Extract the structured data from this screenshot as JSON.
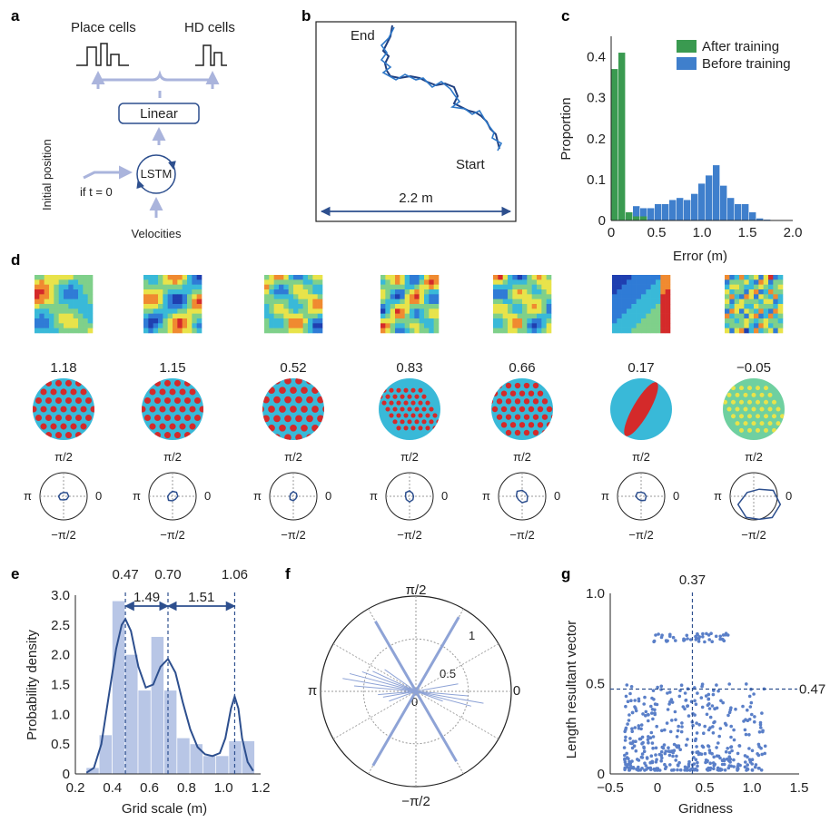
{
  "panel_labels": {
    "a": "a",
    "b": "b",
    "c": "c",
    "d": "d",
    "e": "e",
    "f": "f",
    "g": "g"
  },
  "panel_a": {
    "place_cells": "Place cells",
    "hd_cells": "HD cells",
    "linear": "Linear",
    "lstm": "LSTM",
    "initial_position": "Initial position",
    "if_t0": "if t = 0",
    "velocities": "Velocities"
  },
  "panel_b": {
    "end": "End",
    "start": "Start",
    "scale": "2.2 m"
  },
  "panel_d": {
    "gridness_scores": [
      "1.18",
      "1.15",
      "0.52",
      "0.83",
      "0.66",
      "0.17",
      "−0.05"
    ],
    "polar_top": "π/2",
    "polar_bottom": "−π/2",
    "polar_left": "π",
    "polar_right": "0",
    "polar_radius": [
      0.22,
      0.24,
      0.2,
      0.24,
      0.3,
      0.24,
      0.9
    ]
  },
  "panel_f": {
    "top": "π/2",
    "bottom": "−π/2",
    "left": "π",
    "right": "0",
    "r1": "1",
    "r05": "0.5",
    "r0": "0"
  },
  "chart_data": [
    {
      "panel": "c",
      "type": "bar",
      "xlabel": "Error (m)",
      "ylabel": "Proportion",
      "xlim": [
        0,
        2.0
      ],
      "ylim": [
        0,
        0.45
      ],
      "x_ticks": [
        "0",
        "0.5",
        "1.0",
        "1.5",
        "2.0"
      ],
      "y_ticks": [
        "0",
        "0.1",
        "0.2",
        "0.3",
        "0.4"
      ],
      "bin_width": 0.08,
      "bin_starts": [
        0.0,
        0.08,
        0.16,
        0.24,
        0.32,
        0.4,
        0.48,
        0.56,
        0.64,
        0.72,
        0.8,
        0.88,
        0.96,
        1.04,
        1.12,
        1.2,
        1.28,
        1.36,
        1.44,
        1.52,
        1.6,
        1.68
      ],
      "legend_position": "top-right",
      "series": [
        {
          "name": "After training",
          "color": "#3a9a50",
          "values": [
            0.37,
            0.41,
            0.02,
            0.01,
            0.01,
            0,
            0,
            0,
            0,
            0,
            0,
            0,
            0,
            0,
            0,
            0,
            0,
            0,
            0,
            0,
            0,
            0
          ]
        },
        {
          "name": "Before training",
          "color": "#3f7fcc",
          "values": [
            0.005,
            0.01,
            0.02,
            0.035,
            0.03,
            0.03,
            0.04,
            0.04,
            0.05,
            0.055,
            0.05,
            0.065,
            0.09,
            0.11,
            0.135,
            0.085,
            0.055,
            0.04,
            0.04,
            0.02,
            0.005,
            0.002
          ]
        }
      ]
    },
    {
      "panel": "e",
      "type": "bar",
      "xlabel": "Grid scale (m)",
      "ylabel": "Probability density",
      "xlim": [
        0.2,
        1.2
      ],
      "ylim": [
        0,
        3.0
      ],
      "x_ticks": [
        "0.2",
        "0.4",
        "0.6",
        "0.8",
        "1.0",
        "1.2"
      ],
      "y_ticks": [
        "0",
        "0.5",
        "1.0",
        "1.5",
        "2.0",
        "2.5",
        "3.0"
      ],
      "bin_width": 0.07,
      "bin_starts": [
        0.26,
        0.33,
        0.4,
        0.47,
        0.54,
        0.61,
        0.68,
        0.75,
        0.82,
        0.89,
        0.96,
        1.03,
        1.1
      ],
      "values": [
        0.1,
        0.65,
        2.9,
        2.0,
        1.4,
        2.3,
        1.4,
        0.6,
        0.5,
        0.3,
        0.3,
        0.55,
        0.55
      ],
      "density_curve": [
        [
          0.26,
          0.02
        ],
        [
          0.3,
          0.1
        ],
        [
          0.34,
          0.5
        ],
        [
          0.38,
          1.3
        ],
        [
          0.42,
          2.1
        ],
        [
          0.45,
          2.5
        ],
        [
          0.47,
          2.6
        ],
        [
          0.5,
          2.4
        ],
        [
          0.54,
          1.8
        ],
        [
          0.58,
          1.45
        ],
        [
          0.62,
          1.5
        ],
        [
          0.66,
          1.8
        ],
        [
          0.7,
          1.93
        ],
        [
          0.74,
          1.7
        ],
        [
          0.78,
          1.2
        ],
        [
          0.82,
          0.75
        ],
        [
          0.86,
          0.45
        ],
        [
          0.9,
          0.33
        ],
        [
          0.94,
          0.3
        ],
        [
          0.98,
          0.35
        ],
        [
          1.01,
          0.6
        ],
        [
          1.04,
          1.1
        ],
        [
          1.06,
          1.3
        ],
        [
          1.08,
          1.1
        ],
        [
          1.1,
          0.6
        ],
        [
          1.13,
          0.2
        ],
        [
          1.16,
          0.05
        ]
      ],
      "vlines": [
        "0.47",
        "0.70",
        "1.06"
      ],
      "ratios": [
        "1.49",
        "1.51"
      ]
    },
    {
      "panel": "g",
      "type": "scatter",
      "xlabel": "Gridness",
      "ylabel": "Length resultant vector",
      "xlim": [
        -0.5,
        1.5
      ],
      "ylim": [
        0,
        1.0
      ],
      "x_ticks": [
        "−0.5",
        "0",
        "0.5",
        "1.0",
        "1.5"
      ],
      "y_ticks": [
        "0",
        "0.5",
        "1.0"
      ],
      "vline": "0.37",
      "hline": "0.47",
      "color": "#5a7fc8"
    }
  ]
}
